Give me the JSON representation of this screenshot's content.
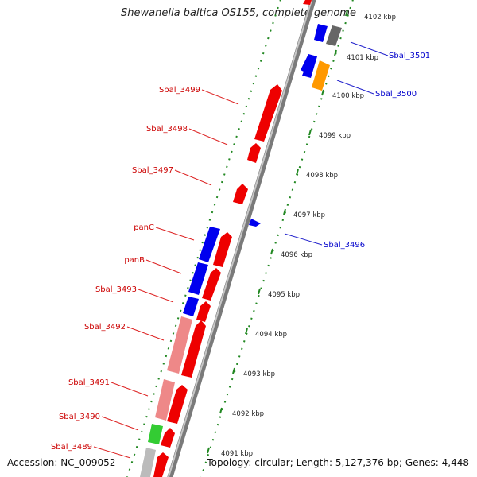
{
  "title": "Shewanella baltica OS155, complete genome",
  "accession_label": "Accession:",
  "accession": "NC_009052",
  "topology_label": "Topology:",
  "topology": "circular",
  "length_label": "Length:",
  "length": "5,127,376 bp",
  "genes_label": "Genes:",
  "genes": "4,448",
  "colors": {
    "minus_strand_label": "#cc0000",
    "plus_strand_label": "#0000cc",
    "kbp_ticks": "#228822",
    "backbone": "#888888"
  },
  "kbp_ticks": [
    "4102 kbp",
    "4101 kbp",
    "4100 kbp",
    "4099 kbp",
    "4098 kbp",
    "4097 kbp",
    "4096 kbp",
    "4095 kbp",
    "4094 kbp",
    "4093 kbp",
    "4092 kbp",
    "4091 kbp"
  ],
  "left_labels": [
    "Sbal_3499",
    "Sbal_3498",
    "Sbal_3497",
    "panC",
    "panB",
    "Sbal_3493",
    "Sbal_3492",
    "Sbal_3491",
    "Sbal_3490",
    "Sbal_3489"
  ],
  "right_labels": [
    "Sbal_3501",
    "Sbal_3500",
    "Sbal_3496"
  ]
}
